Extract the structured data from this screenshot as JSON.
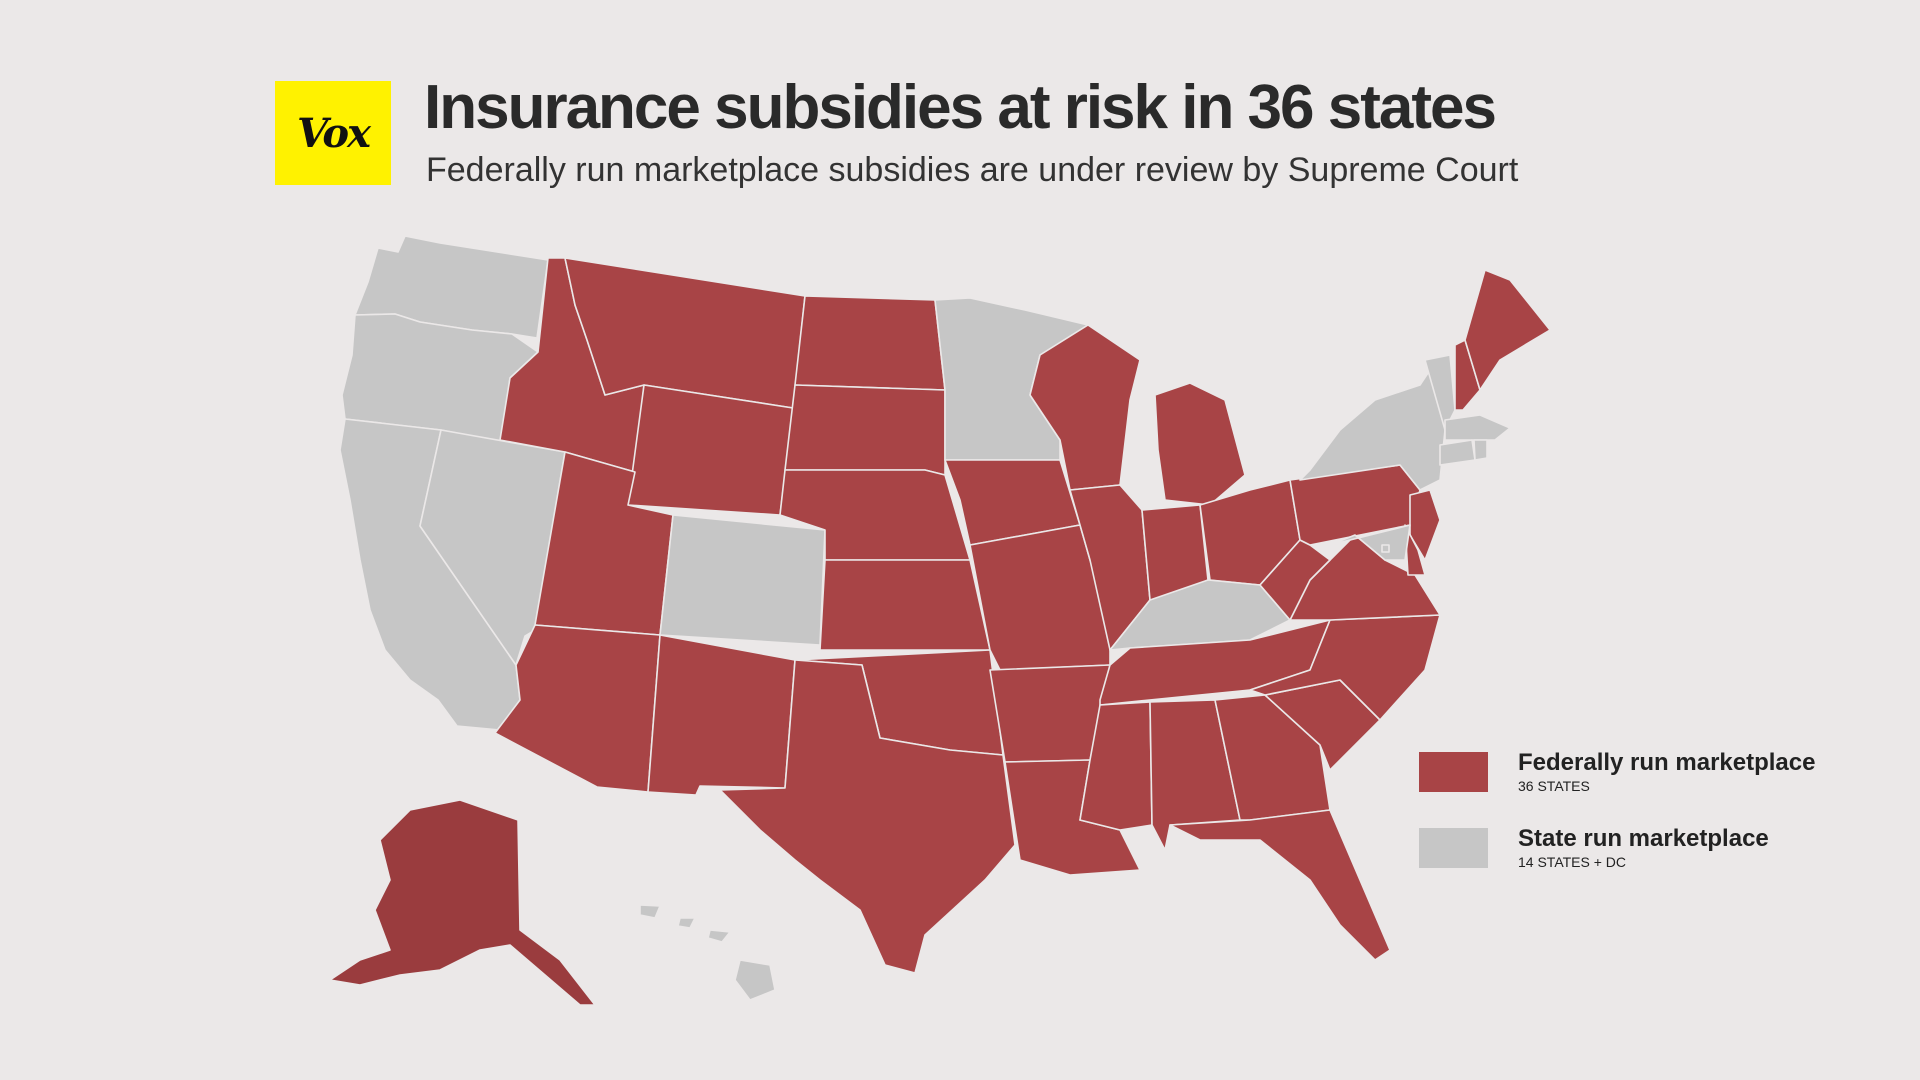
{
  "logo": {
    "text": "Vox"
  },
  "title": "Insurance subsidies at risk in 36 states",
  "subtitle": "Federally run marketplace subsidies are under review by Supreme Court",
  "colors": {
    "federal": "#a84446",
    "federal_alaska": "#9a3c3e",
    "state": "#c6c6c6",
    "border": "#ebe8e8",
    "background": "#ebe8e8",
    "logo_bg": "#fff200"
  },
  "legend": [
    {
      "label": "Federally run marketplace",
      "sublabel": "36 STATES",
      "category": "federal"
    },
    {
      "label": "State run marketplace",
      "sublabel": "14 STATES + DC",
      "category": "state"
    }
  ],
  "map_data": {
    "federal": [
      "ID",
      "MT",
      "ND",
      "SD",
      "WY",
      "UT",
      "AZ",
      "NM",
      "NE",
      "KS",
      "OK",
      "TX",
      "IA",
      "MO",
      "AR",
      "LA",
      "WI",
      "MI",
      "IL",
      "IN",
      "OH",
      "TN",
      "MS",
      "AL",
      "GA",
      "FL",
      "SC",
      "NC",
      "VA",
      "WV",
      "PA",
      "DE",
      "NJ",
      "NH",
      "ME",
      "AK"
    ],
    "state": [
      "WA",
      "OR",
      "CA",
      "NV",
      "CO",
      "MN",
      "KY",
      "NY",
      "VT",
      "MA",
      "CT",
      "RI",
      "MD",
      "HI",
      "DC"
    ]
  }
}
